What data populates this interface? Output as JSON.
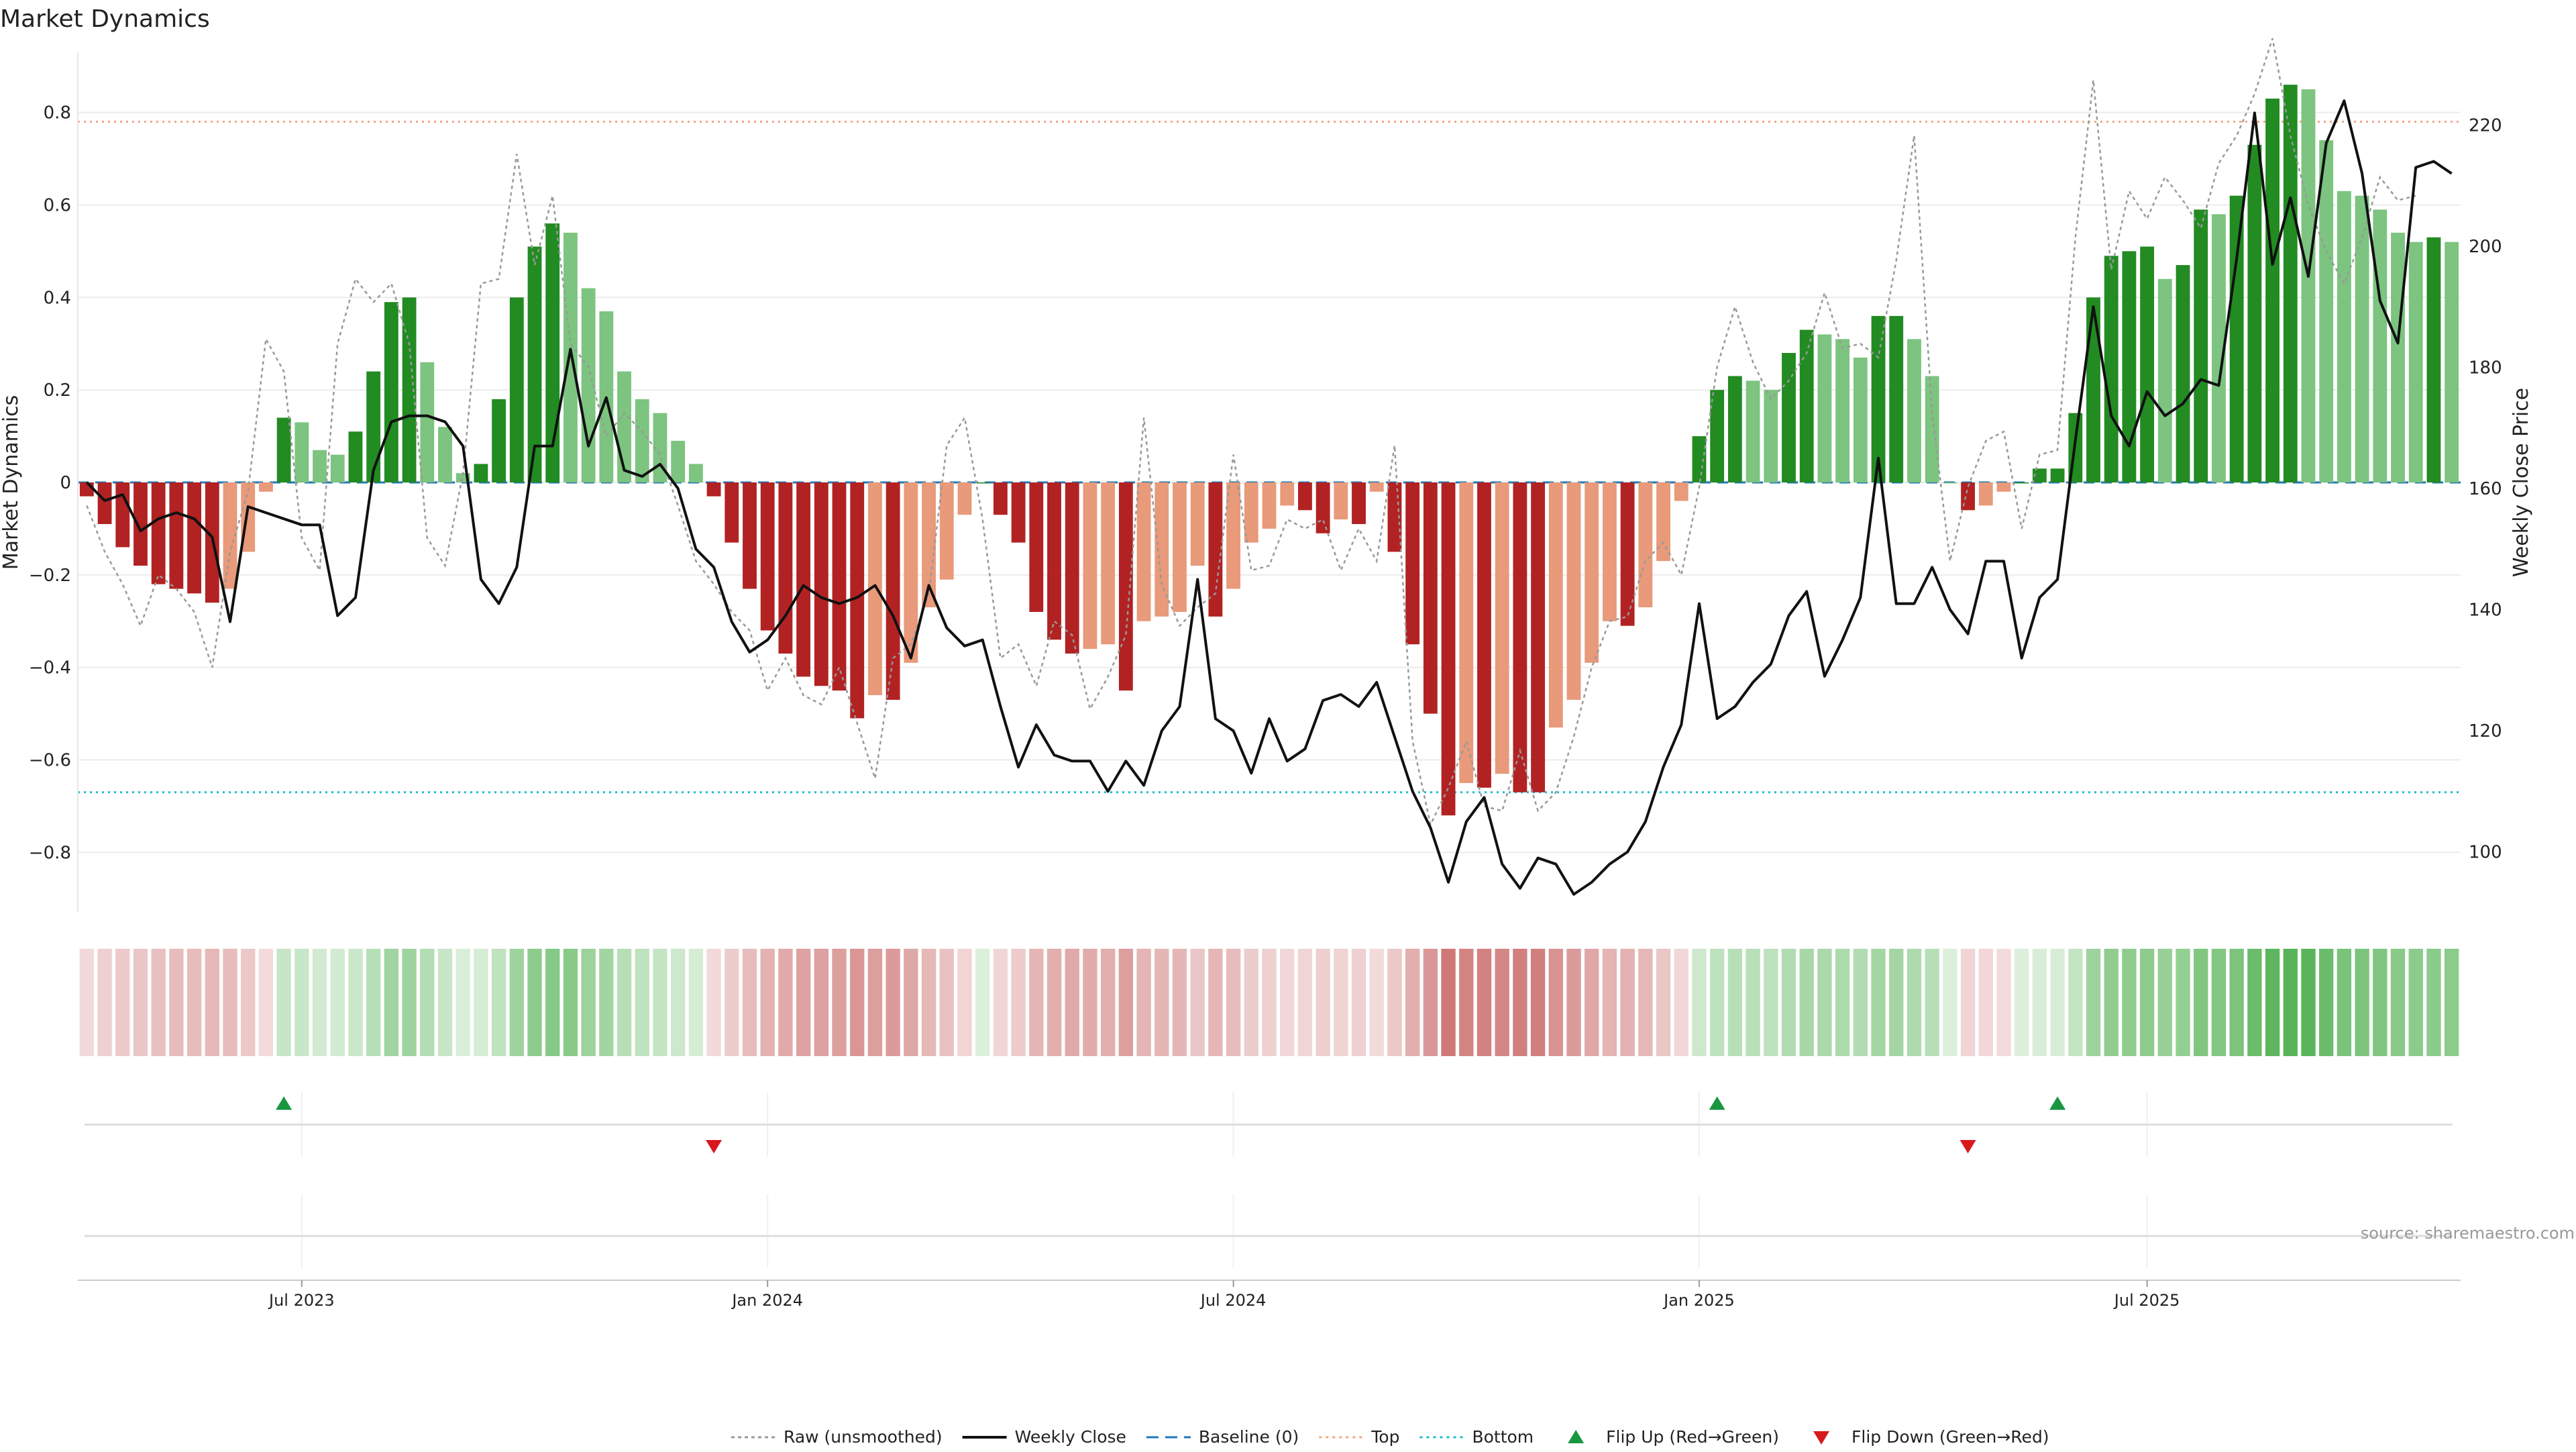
{
  "title": "Market Dynamics",
  "source_text": "source: sharemaestro.com",
  "colors": {
    "strong_green": "#228B22",
    "light_green": "#7CC47F",
    "strong_red": "#B22222",
    "light_red": "#E89A7A",
    "raw_line": "#999999",
    "close_line": "#111111",
    "baseline": "#1f77b4",
    "top_line": "#F4A582",
    "bottom_line": "#17BECF",
    "flip_up": "#1a9641",
    "flip_down": "#d7191c",
    "grid": "#ececec"
  },
  "chart_data": {
    "type": "bar",
    "ylabel_left": "Market Dynamics",
    "ylabel_right": "Weekly Close Price",
    "left_ylim": [
      -0.93,
      0.93
    ],
    "right_ylim": [
      90,
      232
    ],
    "left_ticks": [
      "0.8",
      "0.6",
      "0.4",
      "0.2",
      "0",
      "−0.2",
      "−0.4",
      "−0.6",
      "−0.8"
    ],
    "left_tick_values": [
      0.8,
      0.6,
      0.4,
      0.2,
      0,
      -0.2,
      -0.4,
      -0.6,
      -0.8
    ],
    "right_ticks": [
      "220",
      "200",
      "180",
      "160",
      "140",
      "120",
      "100"
    ],
    "right_tick_values": [
      220,
      200,
      180,
      160,
      140,
      120,
      100
    ],
    "x_ticks": [
      {
        "label": "Jul 2023",
        "week": 12
      },
      {
        "label": "Jan 2024",
        "week": 38
      },
      {
        "label": "Jul 2024",
        "week": 64
      },
      {
        "label": "Jan 2025",
        "week": 90
      },
      {
        "label": "Jul 2025",
        "week": 115
      }
    ],
    "top_level": 0.78,
    "bottom_level": -0.67,
    "baseline": 0,
    "series": [
      {
        "name": "Market Dynamics (bars)",
        "values": [
          -0.03,
          -0.09,
          -0.14,
          -0.18,
          -0.22,
          -0.23,
          -0.24,
          -0.26,
          -0.23,
          -0.15,
          -0.02,
          0.14,
          0.13,
          0.07,
          0.06,
          0.11,
          0.24,
          0.39,
          0.4,
          0.26,
          0.12,
          0.02,
          0.04,
          0.18,
          0.4,
          0.51,
          0.56,
          0.54,
          0.42,
          0.37,
          0.24,
          0.18,
          0.15,
          0.09,
          0.04,
          -0.03,
          -0.13,
          -0.23,
          -0.32,
          -0.37,
          -0.42,
          -0.44,
          -0.45,
          -0.51,
          -0.46,
          -0.47,
          -0.39,
          -0.27,
          -0.21,
          -0.07,
          0,
          -0.07,
          -0.13,
          -0.28,
          -0.34,
          -0.37,
          -0.36,
          -0.35,
          -0.45,
          -0.3,
          -0.29,
          -0.28,
          -0.18,
          -0.29,
          -0.23,
          -0.13,
          -0.1,
          -0.05,
          -0.06,
          -0.11,
          -0.08,
          -0.09,
          -0.02,
          -0.15,
          -0.35,
          -0.5,
          -0.72,
          -0.65,
          -0.66,
          -0.63,
          -0.67,
          -0.67,
          -0.53,
          -0.47,
          -0.39,
          -0.3,
          -0.31,
          -0.27,
          -0.17,
          -0.04,
          0.1,
          0.2,
          0.23,
          0.22,
          0.2,
          0.28,
          0.33,
          0.32,
          0.31,
          0.27,
          0.36,
          0.36,
          0.31,
          0.23,
          0,
          -0.06,
          -0.05,
          -0.02,
          0,
          0.03,
          0.03,
          0.15,
          0.4,
          0.49,
          0.5,
          0.51,
          0.44,
          0.47,
          0.59,
          0.58,
          0.62,
          0.73,
          0.83,
          0.86,
          0.85,
          0.74,
          0.63,
          0.62,
          0.59,
          0.54,
          0.52,
          0.53,
          0.52
        ]
      },
      {
        "name": "Raw (unsmoothed)",
        "values": [
          -0.05,
          -0.15,
          -0.22,
          -0.31,
          -0.2,
          -0.23,
          -0.28,
          -0.4,
          -0.15,
          -0.02,
          0.31,
          0.24,
          -0.12,
          -0.19,
          0.3,
          0.44,
          0.39,
          0.43,
          0.3,
          -0.12,
          -0.18,
          0.02,
          0.43,
          0.44,
          0.71,
          0.47,
          0.62,
          0.3,
          0.25,
          0.1,
          0.15,
          0.11,
          0.06,
          -0.05,
          -0.17,
          -0.22,
          -0.28,
          -0.32,
          -0.45,
          -0.38,
          -0.46,
          -0.48,
          -0.4,
          -0.52,
          -0.64,
          -0.38,
          -0.35,
          -0.24,
          0.08,
          0.14,
          -0.08,
          -0.38,
          -0.35,
          -0.44,
          -0.3,
          -0.33,
          -0.49,
          -0.42,
          -0.33,
          0.14,
          -0.22,
          -0.31,
          -0.27,
          -0.24,
          0.06,
          -0.19,
          -0.18,
          -0.08,
          -0.1,
          -0.08,
          -0.19,
          -0.1,
          -0.17,
          0.08,
          -0.56,
          -0.74,
          -0.66,
          -0.56,
          -0.7,
          -0.71,
          -0.58,
          -0.71,
          -0.67,
          -0.55,
          -0.4,
          -0.3,
          -0.29,
          -0.17,
          -0.13,
          -0.2,
          -0.01,
          0.25,
          0.38,
          0.26,
          0.18,
          0.22,
          0.28,
          0.41,
          0.29,
          0.3,
          0.27,
          0.48,
          0.75,
          0.15,
          -0.17,
          -0.01,
          0.09,
          0.11,
          -0.1,
          0.06,
          0.07,
          0.53,
          0.87,
          0.46,
          0.63,
          0.57,
          0.66,
          0.61,
          0.55,
          0.69,
          0.75,
          0.84,
          0.96,
          0.75,
          0.6,
          0.5,
          0.43,
          0.53,
          0.66,
          0.61,
          0.62
        ]
      },
      {
        "name": "Weekly Close",
        "values": [
          161,
          158,
          159,
          153,
          155,
          156,
          155,
          152,
          138,
          157,
          156,
          155,
          154,
          154,
          139,
          142,
          163,
          171,
          172,
          172,
          171,
          167,
          145,
          141,
          147,
          167,
          167,
          183,
          167,
          175,
          163,
          162,
          164,
          160,
          150,
          147,
          138,
          133,
          135,
          139,
          144,
          142,
          141,
          142,
          144,
          139,
          132,
          144,
          137,
          134,
          135,
          124,
          114,
          121,
          116,
          115,
          115,
          110,
          115,
          111,
          120,
          124,
          145,
          122,
          120,
          113,
          122,
          115,
          117,
          125,
          126,
          124,
          128,
          119,
          110,
          104,
          95,
          105,
          109,
          98,
          94,
          99,
          98,
          93,
          95,
          98,
          100,
          105,
          114,
          121,
          141,
          122,
          124,
          128,
          131,
          139,
          143,
          129,
          135,
          142,
          165,
          141,
          141,
          147,
          140,
          136,
          148,
          148,
          132,
          142,
          145,
          168,
          190,
          172,
          167,
          176,
          172,
          174,
          178,
          177,
          198,
          222,
          197,
          208,
          195,
          217,
          224,
          212,
          191,
          184,
          213,
          214,
          212
        ]
      }
    ],
    "strip_values": [
      -0.03,
      -0.09,
      -0.14,
      -0.18,
      -0.22,
      -0.23,
      -0.24,
      -0.26,
      -0.23,
      -0.15,
      -0.02,
      0.14,
      0.13,
      0.07,
      0.06,
      0.11,
      0.24,
      0.39,
      0.4,
      0.26,
      0.12,
      0.02,
      0.04,
      0.18,
      0.4,
      0.51,
      0.56,
      0.54,
      0.42,
      0.37,
      0.24,
      0.18,
      0.15,
      0.09,
      0.04,
      -0.03,
      -0.13,
      -0.23,
      -0.32,
      -0.37,
      -0.42,
      -0.44,
      -0.45,
      -0.51,
      -0.46,
      -0.47,
      -0.39,
      -0.27,
      -0.21,
      -0.07,
      0,
      -0.07,
      -0.13,
      -0.28,
      -0.34,
      -0.37,
      -0.36,
      -0.35,
      -0.45,
      -0.3,
      -0.29,
      -0.28,
      -0.18,
      -0.29,
      -0.23,
      -0.13,
      -0.1,
      -0.05,
      -0.06,
      -0.11,
      -0.08,
      -0.09,
      -0.02,
      -0.15,
      -0.35,
      -0.5,
      -0.72,
      -0.65,
      -0.66,
      -0.63,
      -0.67,
      -0.67,
      -0.53,
      -0.47,
      -0.39,
      -0.3,
      -0.31,
      -0.27,
      -0.17,
      -0.04,
      0.1,
      0.2,
      0.23,
      0.22,
      0.2,
      0.28,
      0.33,
      0.32,
      0.31,
      0.27,
      0.36,
      0.36,
      0.31,
      0.23,
      0,
      -0.06,
      -0.05,
      -0.02,
      0,
      0.03,
      0.03,
      0.15,
      0.4,
      0.49,
      0.5,
      0.51,
      0.44,
      0.47,
      0.59,
      0.58,
      0.62,
      0.73,
      0.83,
      0.86,
      0.85,
      0.74,
      0.63,
      0.62,
      0.59,
      0.54,
      0.52,
      0.53,
      0.52
    ],
    "flip_up_weeks": [
      11,
      91,
      110
    ],
    "flip_down_weeks": [
      35,
      105
    ],
    "legend": [
      {
        "label": "Raw (unsmoothed)",
        "kind": "line-dotted-gray"
      },
      {
        "label": "Weekly Close",
        "kind": "line-solid-black"
      },
      {
        "label": "Baseline (0)",
        "kind": "line-dashed-blue"
      },
      {
        "label": "Top",
        "kind": "line-dotted-orange"
      },
      {
        "label": "Bottom",
        "kind": "line-dotted-cyan"
      },
      {
        "label": "Flip Up (Red→Green)",
        "kind": "marker-up"
      },
      {
        "label": "Flip Down (Green→Red)",
        "kind": "marker-down"
      }
    ]
  }
}
